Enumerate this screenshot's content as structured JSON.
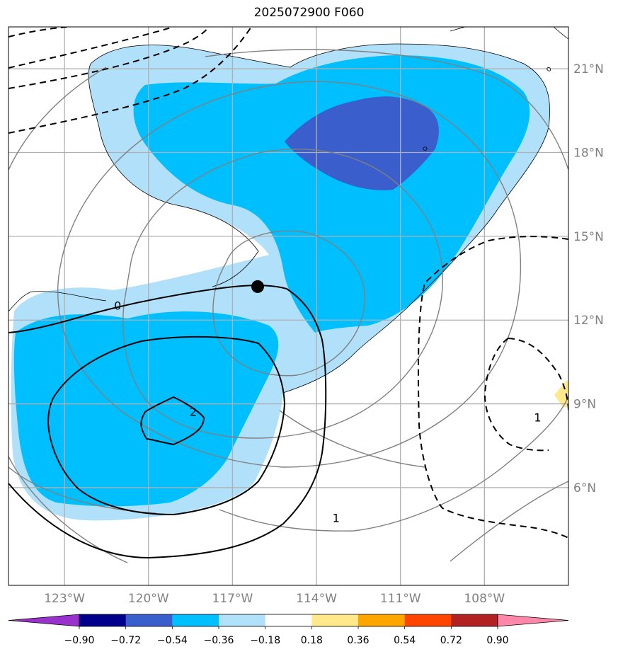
{
  "title": "2025072900 F060",
  "map": {
    "lon_range": [
      -125.0,
      -105.0
    ],
    "lat_range": [
      2.5,
      22.5
    ],
    "lon_ticks": [
      {
        "value": -123,
        "label": "123°W"
      },
      {
        "value": -120,
        "label": "120°W"
      },
      {
        "value": -117,
        "label": "117°W"
      },
      {
        "value": -114,
        "label": "114°W"
      },
      {
        "value": -111,
        "label": "111°W"
      },
      {
        "value": -108,
        "label": "108°W"
      }
    ],
    "lat_ticks": [
      {
        "value": 21,
        "label": "21°N"
      },
      {
        "value": 18,
        "label": "18°N"
      },
      {
        "value": 15,
        "label": "15°N"
      },
      {
        "value": 12,
        "label": "12°N"
      },
      {
        "value": 9,
        "label": "9°N"
      },
      {
        "value": 6,
        "label": "6°N"
      }
    ],
    "center_marker": {
      "lon": -116.1,
      "lat": 13.2
    },
    "contour_labels": [
      {
        "text": "0",
        "lon": -121.1,
        "lat": 12.5
      },
      {
        "text": "1",
        "lon": -113.3,
        "lat": 4.9
      },
      {
        "text": "2",
        "lon": -118.4,
        "lat": 8.7
      },
      {
        "text": "1",
        "lon": -106.1,
        "lat": 8.5
      }
    ],
    "fill_colors": {
      "light": "#b0e0fa",
      "medium": "#00bfff",
      "dark": "#3a5fcd",
      "positive": "#ffe98a"
    }
  },
  "colorbar": {
    "levels": [
      "−0.90",
      "−0.72",
      "−0.54",
      "−0.36",
      "−0.18",
      "0.18",
      "0.36",
      "0.54",
      "0.72",
      "0.90"
    ],
    "colors": [
      "#9932cc",
      "#00008b",
      "#3a5fcd",
      "#00bfff",
      "#b0e0fa",
      "#ffffff",
      "#ffe98a",
      "#ffa500",
      "#ff4500",
      "#b22222",
      "#ff88aa"
    ]
  }
}
